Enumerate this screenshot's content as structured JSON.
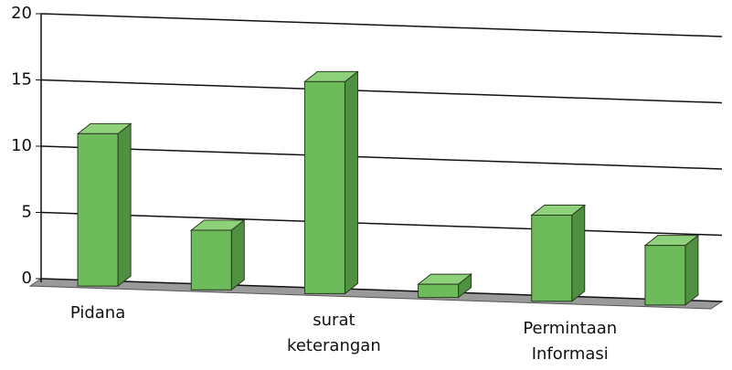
{
  "chart_data": {
    "type": "bar",
    "categories": [
      "Pidana",
      null,
      "surat keterangan",
      null,
      "Permintaan Informasi",
      null
    ],
    "values": [
      11.5,
      4.5,
      16,
      1,
      6.5,
      4.5
    ],
    "color": "#6dbb5a",
    "ylim": [
      0,
      20
    ],
    "yticks": [
      0,
      5,
      10,
      15,
      20
    ],
    "grid": true
  }
}
